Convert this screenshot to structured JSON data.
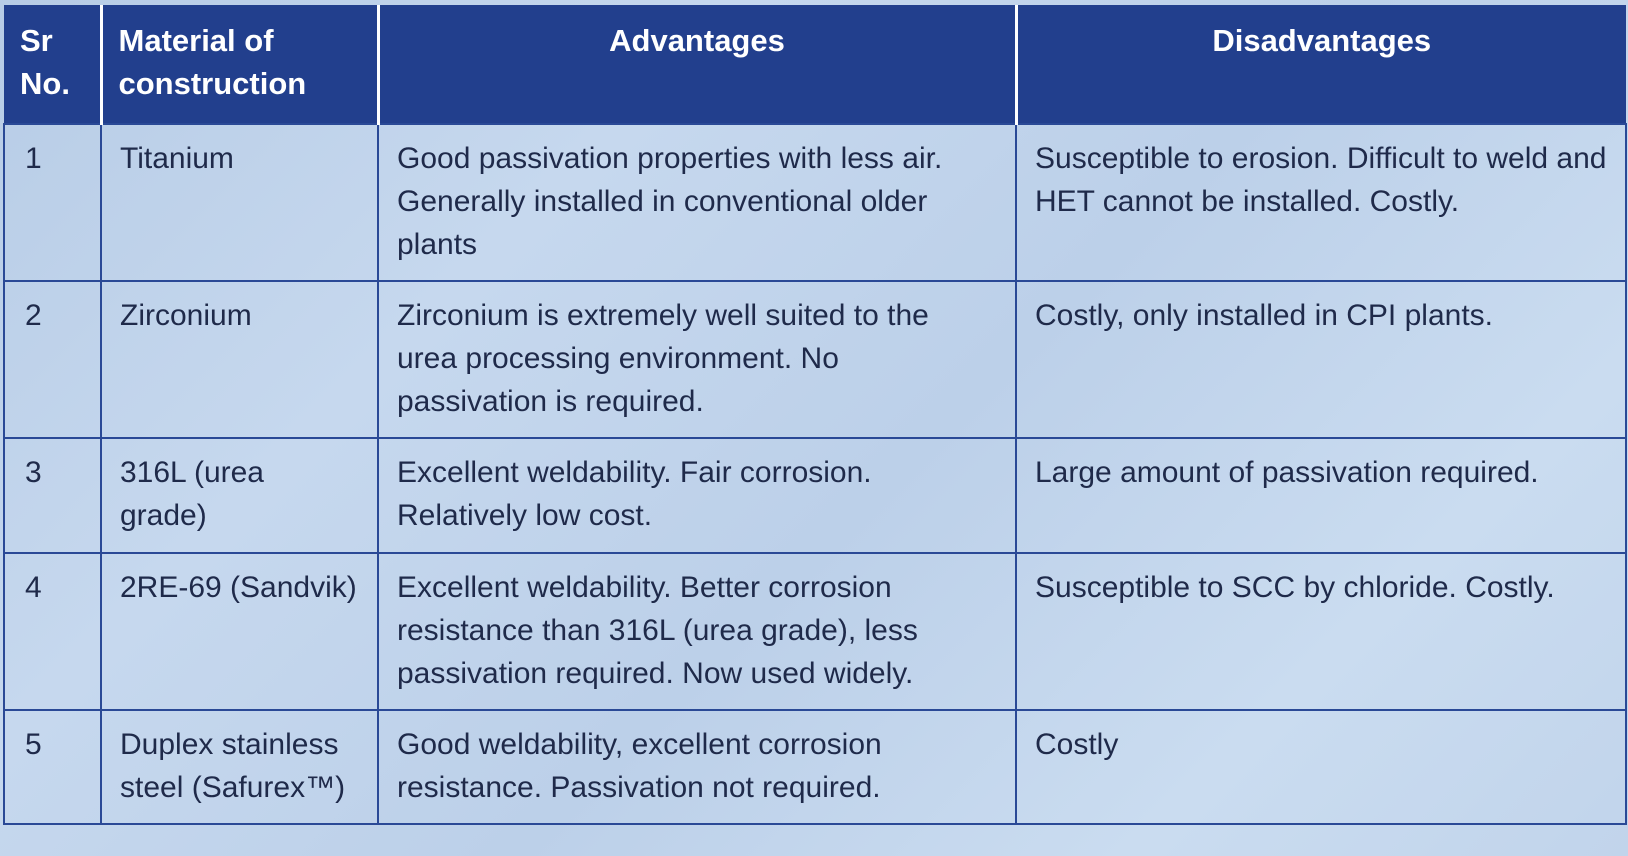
{
  "table": {
    "headers": {
      "sr_no": "Sr No.",
      "material": "Material of construction",
      "advantages": "Advantages",
      "disadvantages": "Disadvantages"
    },
    "rows": [
      {
        "sr": "1",
        "material": "Titanium",
        "advantages": "Good passivation properties with less air. Generally installed in conventional older plants",
        "disadvantages": "Susceptible to erosion. Difficult to weld and HET cannot be installed. Costly."
      },
      {
        "sr": "2",
        "material": "Zirconium",
        "advantages": "Zirconium is extremely well suited to the urea processing environment. No passivation is required.",
        "disadvantages": "Costly, only installed in CPI plants."
      },
      {
        "sr": "3",
        "material": "316L (urea grade)",
        "advantages": "Excellent weldability. Fair corrosion. Relatively low cost.",
        "disadvantages": "Large amount of passivation required."
      },
      {
        "sr": "4",
        "material": "2RE-69 (Sandvik)",
        "advantages": "Excellent weldability. Better corrosion resistance than 316L (urea grade), less passivation required. Now used widely.",
        "disadvantages": "Susceptible to SCC by chloride. Costly."
      },
      {
        "sr": "5",
        "material": "Duplex stainless steel (Safurex™)",
        "advantages": "Good weldability, excellent corrosion resistance. Passivation not required.",
        "disadvantages": "Costly"
      }
    ]
  },
  "colors": {
    "header_bg": "#223f8d",
    "header_text": "#ffffff",
    "grid_line": "#2a4996",
    "body_bg": "#c3d6ec",
    "body_text": "#1f2a4a"
  }
}
